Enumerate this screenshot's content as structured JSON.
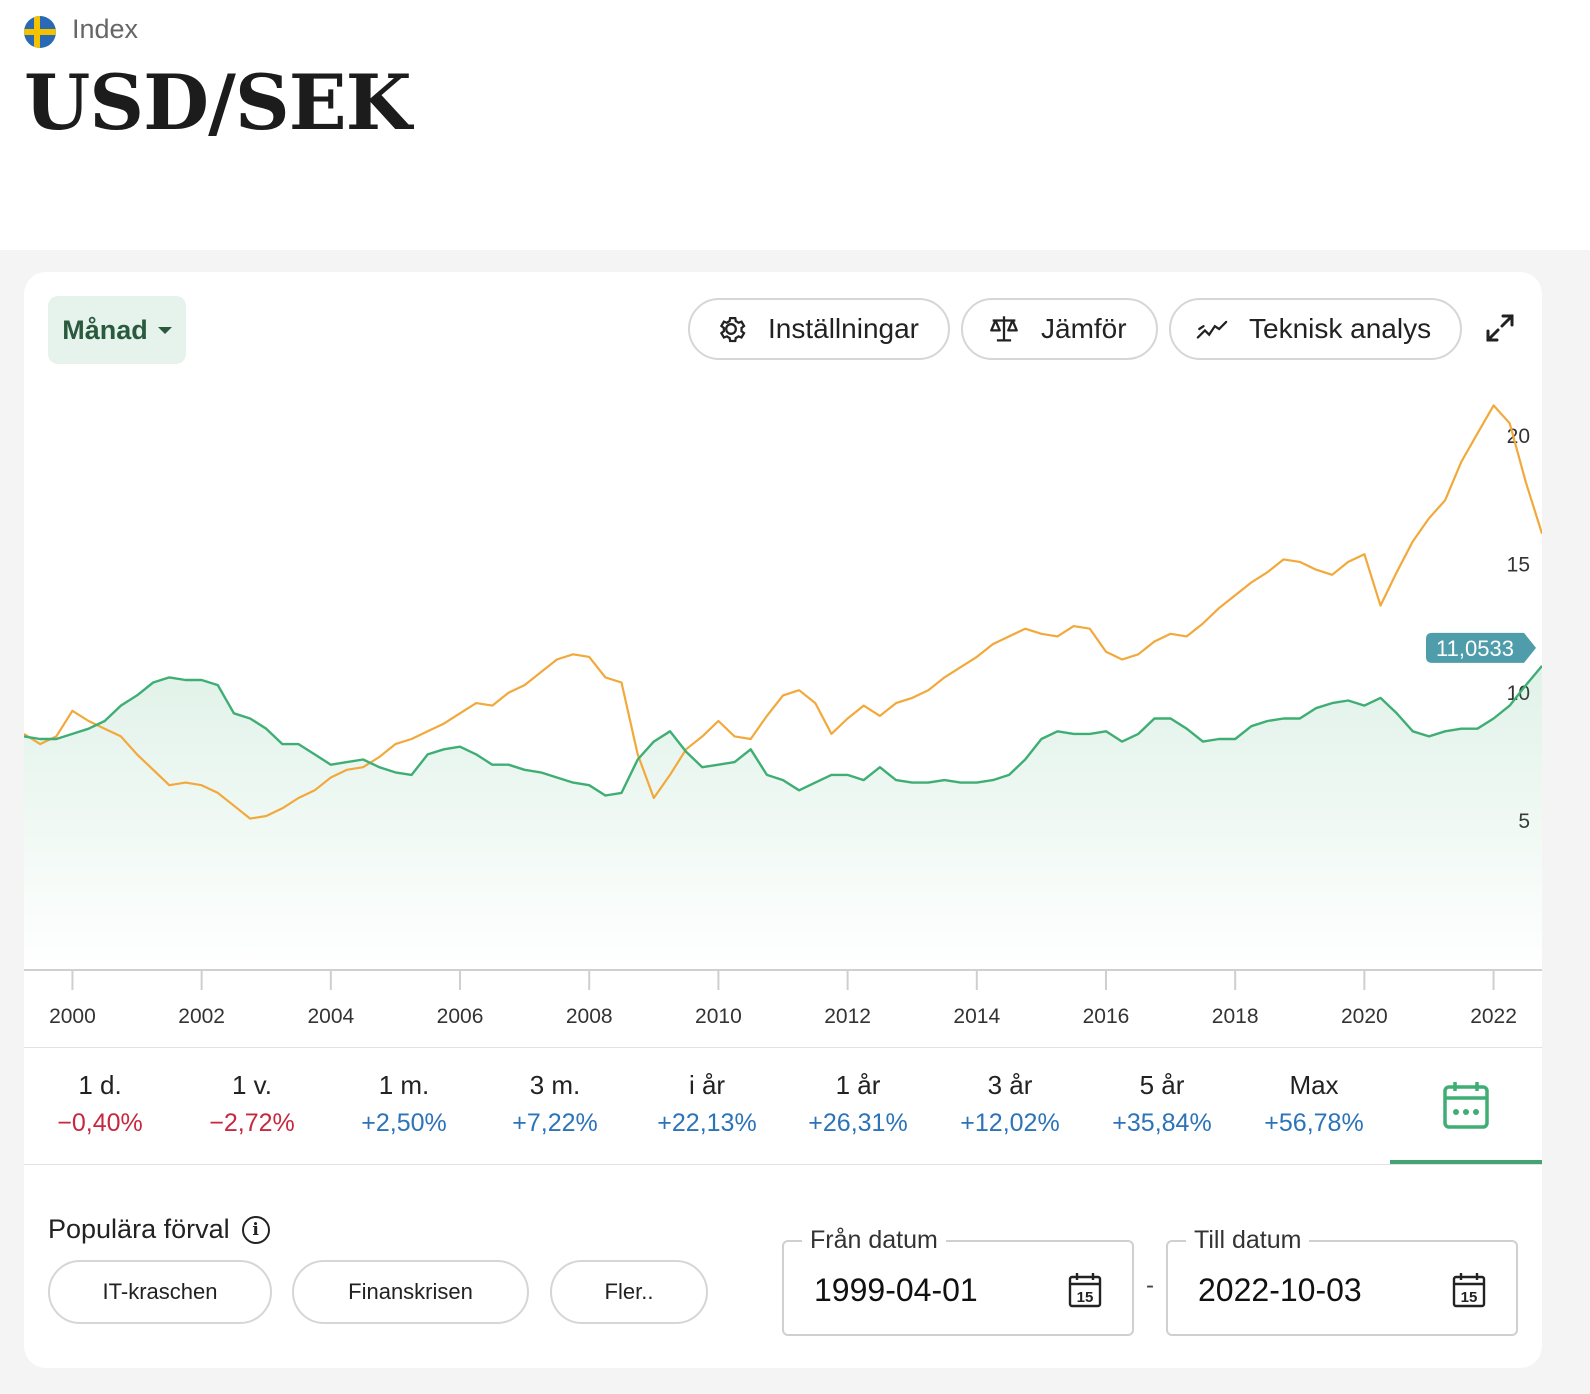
{
  "header": {
    "category": "Index",
    "title": "USD/SEK"
  },
  "toolbar": {
    "period_label": "Månad",
    "settings_label": "Inställningar",
    "compare_label": "Jämför",
    "technical_label": "Teknisk analys"
  },
  "chart_data": {
    "type": "line",
    "x_tick_labels": [
      "2000",
      "2002",
      "2004",
      "2006",
      "2008",
      "2010",
      "2012",
      "2014",
      "2016",
      "2018",
      "2020",
      "2022"
    ],
    "y_tick_labels": [
      "5",
      "10",
      "15",
      "20"
    ],
    "ylim": [
      -0.8,
      22.5
    ],
    "xlim": [
      1999.25,
      2022.75
    ],
    "current_value_label": "11,0533",
    "colors": {
      "primary": "#3fae74",
      "compare": "#f2a93b",
      "badge": "#4f9daa"
    },
    "series": [
      {
        "points": [
          [
            1999.25,
            8.3
          ],
          [
            1999.5,
            8.2
          ],
          [
            1999.75,
            8.2
          ],
          [
            2000.0,
            8.4
          ],
          [
            2000.25,
            8.6
          ],
          [
            2000.5,
            8.9
          ],
          [
            2000.75,
            9.5
          ],
          [
            2001.0,
            9.9
          ],
          [
            2001.25,
            10.4
          ],
          [
            2001.5,
            10.6
          ],
          [
            2001.75,
            10.5
          ],
          [
            2002.0,
            10.5
          ],
          [
            2002.25,
            10.3
          ],
          [
            2002.5,
            9.2
          ],
          [
            2002.75,
            9.0
          ],
          [
            2003.0,
            8.6
          ],
          [
            2003.25,
            8.0
          ],
          [
            2003.5,
            8.0
          ],
          [
            2003.75,
            7.6
          ],
          [
            2004.0,
            7.2
          ],
          [
            2004.25,
            7.3
          ],
          [
            2004.5,
            7.4
          ],
          [
            2004.75,
            7.1
          ],
          [
            2005.0,
            6.9
          ],
          [
            2005.25,
            6.8
          ],
          [
            2005.5,
            7.6
          ],
          [
            2005.75,
            7.8
          ],
          [
            2006.0,
            7.9
          ],
          [
            2006.25,
            7.6
          ],
          [
            2006.5,
            7.2
          ],
          [
            2006.75,
            7.2
          ],
          [
            2007.0,
            7.0
          ],
          [
            2007.25,
            6.9
          ],
          [
            2007.5,
            6.7
          ],
          [
            2007.75,
            6.5
          ],
          [
            2008.0,
            6.4
          ],
          [
            2008.25,
            6.0
          ],
          [
            2008.5,
            6.1
          ],
          [
            2008.75,
            7.4
          ],
          [
            2009.0,
            8.1
          ],
          [
            2009.25,
            8.5
          ],
          [
            2009.5,
            7.7
          ],
          [
            2009.75,
            7.1
          ],
          [
            2010.0,
            7.2
          ],
          [
            2010.25,
            7.3
          ],
          [
            2010.5,
            7.8
          ],
          [
            2010.75,
            6.8
          ],
          [
            2011.0,
            6.6
          ],
          [
            2011.25,
            6.2
          ],
          [
            2011.5,
            6.5
          ],
          [
            2011.75,
            6.8
          ],
          [
            2012.0,
            6.8
          ],
          [
            2012.25,
            6.6
          ],
          [
            2012.5,
            7.1
          ],
          [
            2012.75,
            6.6
          ],
          [
            2013.0,
            6.5
          ],
          [
            2013.25,
            6.5
          ],
          [
            2013.5,
            6.6
          ],
          [
            2013.75,
            6.5
          ],
          [
            2014.0,
            6.5
          ],
          [
            2014.25,
            6.6
          ],
          [
            2014.5,
            6.8
          ],
          [
            2014.75,
            7.4
          ],
          [
            2015.0,
            8.2
          ],
          [
            2015.25,
            8.5
          ],
          [
            2015.5,
            8.4
          ],
          [
            2015.75,
            8.4
          ],
          [
            2016.0,
            8.5
          ],
          [
            2016.25,
            8.1
          ],
          [
            2016.5,
            8.4
          ],
          [
            2016.75,
            9.0
          ],
          [
            2017.0,
            9.0
          ],
          [
            2017.25,
            8.6
          ],
          [
            2017.5,
            8.1
          ],
          [
            2017.75,
            8.2
          ],
          [
            2018.0,
            8.2
          ],
          [
            2018.25,
            8.7
          ],
          [
            2018.5,
            8.9
          ],
          [
            2018.75,
            9.0
          ],
          [
            2019.0,
            9.0
          ],
          [
            2019.25,
            9.4
          ],
          [
            2019.5,
            9.6
          ],
          [
            2019.75,
            9.7
          ],
          [
            2020.0,
            9.5
          ],
          [
            2020.25,
            9.8
          ],
          [
            2020.5,
            9.2
          ],
          [
            2020.75,
            8.5
          ],
          [
            2021.0,
            8.3
          ],
          [
            2021.25,
            8.5
          ],
          [
            2021.5,
            8.6
          ],
          [
            2021.75,
            8.6
          ],
          [
            2022.0,
            9.0
          ],
          [
            2022.25,
            9.5
          ],
          [
            2022.5,
            10.3
          ],
          [
            2022.75,
            11.05
          ]
        ]
      },
      {
        "points": [
          [
            1999.25,
            8.4
          ],
          [
            1999.5,
            8.0
          ],
          [
            1999.75,
            8.3
          ],
          [
            2000.0,
            9.3
          ],
          [
            2000.25,
            8.9
          ],
          [
            2000.5,
            8.6
          ],
          [
            2000.75,
            8.3
          ],
          [
            2001.0,
            7.6
          ],
          [
            2001.25,
            7.0
          ],
          [
            2001.5,
            6.4
          ],
          [
            2001.75,
            6.5
          ],
          [
            2002.0,
            6.4
          ],
          [
            2002.25,
            6.1
          ],
          [
            2002.5,
            5.6
          ],
          [
            2002.75,
            5.1
          ],
          [
            2003.0,
            5.2
          ],
          [
            2003.25,
            5.5
          ],
          [
            2003.5,
            5.9
          ],
          [
            2003.75,
            6.2
          ],
          [
            2004.0,
            6.7
          ],
          [
            2004.25,
            7.0
          ],
          [
            2004.5,
            7.1
          ],
          [
            2004.75,
            7.5
          ],
          [
            2005.0,
            8.0
          ],
          [
            2005.25,
            8.2
          ],
          [
            2005.5,
            8.5
          ],
          [
            2005.75,
            8.8
          ],
          [
            2006.0,
            9.2
          ],
          [
            2006.25,
            9.6
          ],
          [
            2006.5,
            9.5
          ],
          [
            2006.75,
            10.0
          ],
          [
            2007.0,
            10.3
          ],
          [
            2007.25,
            10.8
          ],
          [
            2007.5,
            11.3
          ],
          [
            2007.75,
            11.5
          ],
          [
            2008.0,
            11.4
          ],
          [
            2008.25,
            10.6
          ],
          [
            2008.5,
            10.4
          ],
          [
            2008.75,
            7.6
          ],
          [
            2009.0,
            5.9
          ],
          [
            2009.25,
            6.8
          ],
          [
            2009.5,
            7.8
          ],
          [
            2009.75,
            8.3
          ],
          [
            2010.0,
            8.9
          ],
          [
            2010.25,
            8.3
          ],
          [
            2010.5,
            8.2
          ],
          [
            2010.75,
            9.1
          ],
          [
            2011.0,
            9.9
          ],
          [
            2011.25,
            10.1
          ],
          [
            2011.5,
            9.6
          ],
          [
            2011.75,
            8.4
          ],
          [
            2012.0,
            9.0
          ],
          [
            2012.25,
            9.5
          ],
          [
            2012.5,
            9.1
          ],
          [
            2012.75,
            9.6
          ],
          [
            2013.0,
            9.8
          ],
          [
            2013.25,
            10.1
          ],
          [
            2013.5,
            10.6
          ],
          [
            2013.75,
            11.0
          ],
          [
            2014.0,
            11.4
          ],
          [
            2014.25,
            11.9
          ],
          [
            2014.5,
            12.2
          ],
          [
            2014.75,
            12.5
          ],
          [
            2015.0,
            12.3
          ],
          [
            2015.25,
            12.2
          ],
          [
            2015.5,
            12.6
          ],
          [
            2015.75,
            12.5
          ],
          [
            2016.0,
            11.6
          ],
          [
            2016.25,
            11.3
          ],
          [
            2016.5,
            11.5
          ],
          [
            2016.75,
            12.0
          ],
          [
            2017.0,
            12.3
          ],
          [
            2017.25,
            12.2
          ],
          [
            2017.5,
            12.7
          ],
          [
            2017.75,
            13.3
          ],
          [
            2018.0,
            13.8
          ],
          [
            2018.25,
            14.3
          ],
          [
            2018.5,
            14.7
          ],
          [
            2018.75,
            15.2
          ],
          [
            2019.0,
            15.1
          ],
          [
            2019.25,
            14.8
          ],
          [
            2019.5,
            14.6
          ],
          [
            2019.75,
            15.1
          ],
          [
            2020.0,
            15.4
          ],
          [
            2020.25,
            13.4
          ],
          [
            2020.5,
            14.7
          ],
          [
            2020.75,
            15.9
          ],
          [
            2021.0,
            16.8
          ],
          [
            2021.25,
            17.5
          ],
          [
            2021.5,
            19.0
          ],
          [
            2021.75,
            20.1
          ],
          [
            2022.0,
            21.2
          ],
          [
            2022.25,
            20.5
          ],
          [
            2022.5,
            18.2
          ],
          [
            2022.75,
            16.2
          ]
        ]
      }
    ]
  },
  "returns": [
    {
      "label": "1 d.",
      "value": "−0,40%",
      "sign": "neg"
    },
    {
      "label": "1 v.",
      "value": "−2,72%",
      "sign": "neg"
    },
    {
      "label": "1 m.",
      "value": "+2,50%",
      "sign": "pos"
    },
    {
      "label": "3 m.",
      "value": "+7,22%",
      "sign": "pos"
    },
    {
      "label": "i år",
      "value": "+22,13%",
      "sign": "pos"
    },
    {
      "label": "1 år",
      "value": "+26,31%",
      "sign": "pos"
    },
    {
      "label": "3 år",
      "value": "+12,02%",
      "sign": "pos"
    },
    {
      "label": "5 år",
      "value": "+35,84%",
      "sign": "pos"
    },
    {
      "label": "Max",
      "value": "+56,78%",
      "sign": "pos"
    }
  ],
  "presets": {
    "title": "Populära förval",
    "items": [
      "IT-kraschen",
      "Finanskrisen",
      "Fler.."
    ]
  },
  "dates": {
    "from_label": "Från datum",
    "from_value": "1999-04-01",
    "separator": "-",
    "to_label": "Till datum",
    "to_value": "2022-10-03",
    "calendar_day": "15"
  }
}
